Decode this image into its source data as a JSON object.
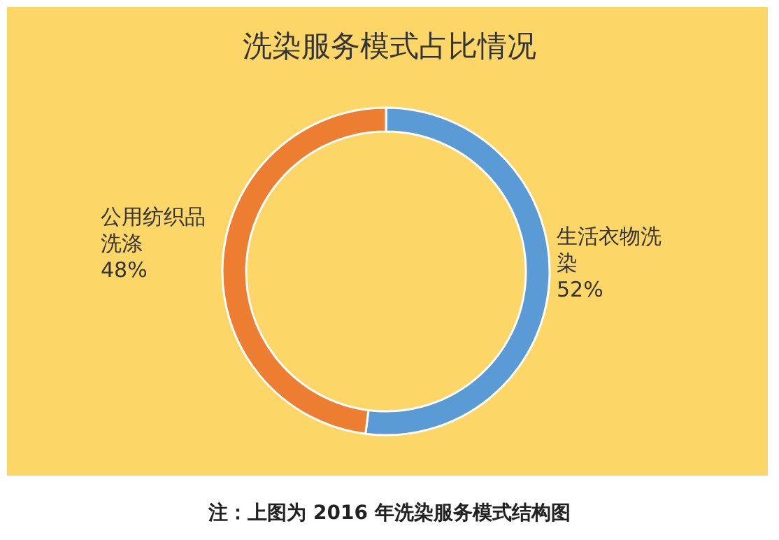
{
  "chart_data": {
    "type": "donut",
    "title": "洗染服务模式占比情况",
    "categories": [
      "生活衣物洗染",
      "公用纺织品洗涤"
    ],
    "values": [
      52,
      48
    ],
    "colors": [
      "#5b9bd5",
      "#ed7d31"
    ],
    "value_labels": [
      "52%",
      "48%"
    ],
    "annotations": [
      "注：上图为 2016 年洗染服务模式结构图"
    ]
  }
}
